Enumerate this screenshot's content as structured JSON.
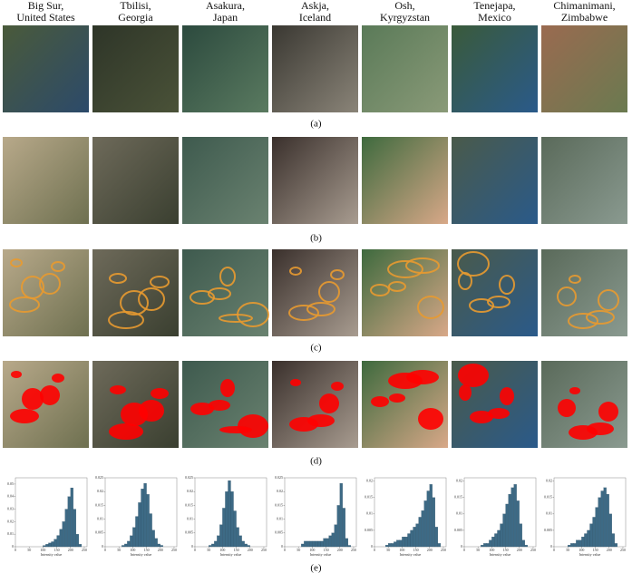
{
  "column_labels": [
    [
      "Big Sur,",
      "United States"
    ],
    [
      "Tbilisi,",
      "Georgia"
    ],
    [
      "Asakura,",
      "Japan"
    ],
    [
      "Askja,",
      "Iceland"
    ],
    [
      "Osh,",
      "Kyrgyzstan"
    ],
    [
      "Tenejapa,",
      "Mexico"
    ],
    [
      "Chimanimani,",
      "Zimbabwe"
    ]
  ],
  "captions": [
    "(a)",
    "(b)",
    "(c)",
    "(d)",
    "(e)"
  ],
  "histograms": {
    "type": "histogram",
    "xlabel": "Intensity value",
    "xlim": [
      0,
      260
    ],
    "xticks": [
      0,
      50,
      100,
      150,
      200,
      250
    ],
    "color": "#3d6a85",
    "bins": [
      0,
      10,
      20,
      30,
      40,
      50,
      60,
      70,
      80,
      90,
      100,
      110,
      120,
      130,
      140,
      150,
      160,
      170,
      180,
      190,
      200,
      210,
      220,
      230,
      240,
      250
    ],
    "panels": [
      {
        "ylim": [
          0,
          0.055
        ],
        "yticks": [
          0,
          0.01,
          0.02,
          0.03,
          0.04,
          0.05
        ],
        "values": [
          0,
          0,
          0,
          0,
          0,
          0,
          0,
          0,
          0,
          0,
          0.001,
          0.002,
          0.003,
          0.004,
          0.006,
          0.009,
          0.014,
          0.02,
          0.03,
          0.04,
          0.047,
          0.03,
          0.01,
          0.002,
          0
        ]
      },
      {
        "ylim": [
          0,
          0.025
        ],
        "yticks": [
          0,
          0.005,
          0.01,
          0.015,
          0.02,
          0.025
        ],
        "values": [
          0,
          0,
          0,
          0,
          0,
          0,
          0.0005,
          0.001,
          0.002,
          0.004,
          0.007,
          0.011,
          0.016,
          0.021,
          0.023,
          0.019,
          0.012,
          0.006,
          0.003,
          0.001,
          0.0005,
          0,
          0,
          0,
          0
        ]
      },
      {
        "ylim": [
          0,
          0.025
        ],
        "yticks": [
          0,
          0.005,
          0.01,
          0.015,
          0.02,
          0.025
        ],
        "values": [
          0,
          0,
          0,
          0,
          0,
          0.0005,
          0.001,
          0.002,
          0.004,
          0.008,
          0.014,
          0.02,
          0.024,
          0.02,
          0.013,
          0.007,
          0.004,
          0.002,
          0.001,
          0.0005,
          0,
          0,
          0,
          0,
          0
        ]
      },
      {
        "ylim": [
          0,
          0.025
        ],
        "yticks": [
          0,
          0.005,
          0.01,
          0.015,
          0.02,
          0.025
        ],
        "values": [
          0,
          0,
          0,
          0,
          0,
          0,
          0.001,
          0.002,
          0.002,
          0.002,
          0.002,
          0.002,
          0.002,
          0.002,
          0.003,
          0.003,
          0.004,
          0.005,
          0.008,
          0.015,
          0.023,
          0.014,
          0.003,
          0.0005,
          0
        ]
      },
      {
        "ylim": [
          0,
          0.021
        ],
        "yticks": [
          0,
          0.005,
          0.01,
          0.015,
          0.02
        ],
        "values": [
          0,
          0,
          0,
          0,
          0.0005,
          0.001,
          0.001,
          0.0015,
          0.002,
          0.002,
          0.003,
          0.003,
          0.004,
          0.005,
          0.006,
          0.007,
          0.009,
          0.011,
          0.014,
          0.017,
          0.019,
          0.015,
          0.006,
          0.001,
          0
        ]
      },
      {
        "ylim": [
          0,
          0.021
        ],
        "yticks": [
          0,
          0.005,
          0.01,
          0.015,
          0.02
        ],
        "values": [
          0,
          0,
          0,
          0,
          0,
          0,
          0.0005,
          0.001,
          0.001,
          0.002,
          0.003,
          0.004,
          0.005,
          0.007,
          0.01,
          0.013,
          0.016,
          0.018,
          0.019,
          0.014,
          0.007,
          0.002,
          0.0005,
          0,
          0
        ]
      },
      {
        "ylim": [
          0,
          0.021
        ],
        "yticks": [
          0,
          0.005,
          0.01,
          0.015,
          0.02
        ],
        "values": [
          0,
          0,
          0,
          0,
          0,
          0.0005,
          0.001,
          0.001,
          0.002,
          0.002,
          0.003,
          0.004,
          0.005,
          0.007,
          0.009,
          0.012,
          0.015,
          0.017,
          0.018,
          0.016,
          0.01,
          0.004,
          0.001,
          0,
          0
        ]
      }
    ]
  }
}
